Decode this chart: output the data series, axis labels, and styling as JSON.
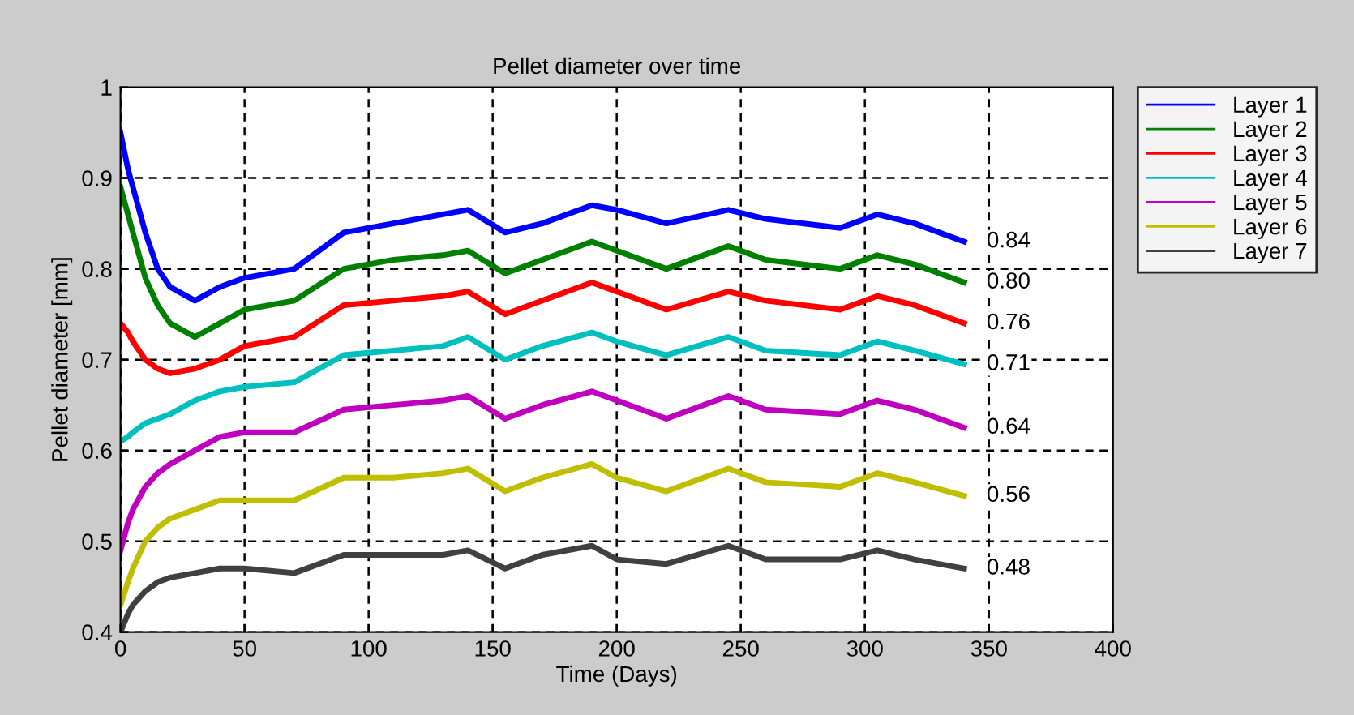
{
  "chart_data": {
    "type": "line",
    "title": "Pellet diameter over time",
    "xlabel": "Time (Days)",
    "ylabel": "Pellet diameter [mm]",
    "x": [
      0,
      3,
      5,
      10,
      15,
      20,
      30,
      40,
      50,
      70,
      90,
      110,
      130,
      140,
      155,
      170,
      190,
      200,
      220,
      245,
      260,
      290,
      305,
      320,
      340
    ],
    "series": [
      {
        "name": "Layer 1",
        "color": "#0000ff",
        "values": [
          0.95,
          0.91,
          0.89,
          0.84,
          0.8,
          0.78,
          0.765,
          0.78,
          0.79,
          0.8,
          0.84,
          0.85,
          0.86,
          0.865,
          0.84,
          0.85,
          0.87,
          0.865,
          0.85,
          0.865,
          0.855,
          0.845,
          0.86,
          0.85,
          0.83
        ]
      },
      {
        "name": "Layer 2",
        "color": "#008000",
        "values": [
          0.89,
          0.86,
          0.84,
          0.79,
          0.76,
          0.74,
          0.725,
          0.74,
          0.755,
          0.765,
          0.8,
          0.81,
          0.815,
          0.82,
          0.795,
          0.81,
          0.83,
          0.82,
          0.8,
          0.825,
          0.81,
          0.8,
          0.815,
          0.805,
          0.785
        ]
      },
      {
        "name": "Layer 3",
        "color": "#ff0000",
        "values": [
          0.74,
          0.73,
          0.72,
          0.7,
          0.69,
          0.685,
          0.69,
          0.7,
          0.715,
          0.725,
          0.76,
          0.765,
          0.77,
          0.775,
          0.75,
          0.765,
          0.785,
          0.775,
          0.755,
          0.775,
          0.765,
          0.755,
          0.77,
          0.76,
          0.74
        ]
      },
      {
        "name": "Layer 4",
        "color": "#00bfbf",
        "values": [
          0.61,
          0.615,
          0.62,
          0.63,
          0.635,
          0.64,
          0.655,
          0.665,
          0.67,
          0.675,
          0.705,
          0.71,
          0.715,
          0.725,
          0.7,
          0.715,
          0.73,
          0.72,
          0.705,
          0.725,
          0.71,
          0.705,
          0.72,
          0.71,
          0.695
        ]
      },
      {
        "name": "Layer 5",
        "color": "#bf00bf",
        "values": [
          0.49,
          0.52,
          0.535,
          0.56,
          0.575,
          0.585,
          0.6,
          0.615,
          0.62,
          0.62,
          0.645,
          0.65,
          0.655,
          0.66,
          0.635,
          0.65,
          0.665,
          0.655,
          0.635,
          0.66,
          0.645,
          0.64,
          0.655,
          0.645,
          0.625
        ]
      },
      {
        "name": "Layer 6",
        "color": "#bfbf00",
        "values": [
          0.43,
          0.455,
          0.47,
          0.5,
          0.515,
          0.525,
          0.535,
          0.545,
          0.545,
          0.545,
          0.57,
          0.57,
          0.575,
          0.58,
          0.555,
          0.57,
          0.585,
          0.57,
          0.555,
          0.58,
          0.565,
          0.56,
          0.575,
          0.565,
          0.55
        ]
      },
      {
        "name": "Layer 7",
        "color": "#404040",
        "values": [
          0.4,
          0.42,
          0.43,
          0.445,
          0.455,
          0.46,
          0.465,
          0.47,
          0.47,
          0.465,
          0.485,
          0.485,
          0.485,
          0.49,
          0.47,
          0.485,
          0.495,
          0.48,
          0.475,
          0.495,
          0.48,
          0.48,
          0.49,
          0.48,
          0.47
        ]
      }
    ],
    "annotations": [
      "0.84",
      "0.80",
      "0.76",
      "0.71",
      "0.64",
      "0.56",
      "0.48"
    ],
    "xlim": [
      0,
      400
    ],
    "xticks": [
      0,
      50,
      100,
      150,
      200,
      250,
      300,
      350,
      400
    ],
    "ylim": [
      0.4,
      1
    ],
    "yticks": [
      0.4,
      0.5,
      0.6,
      0.7,
      0.8,
      0.9,
      1
    ],
    "grid": true,
    "legend": "right",
    "line_style": "solid"
  }
}
